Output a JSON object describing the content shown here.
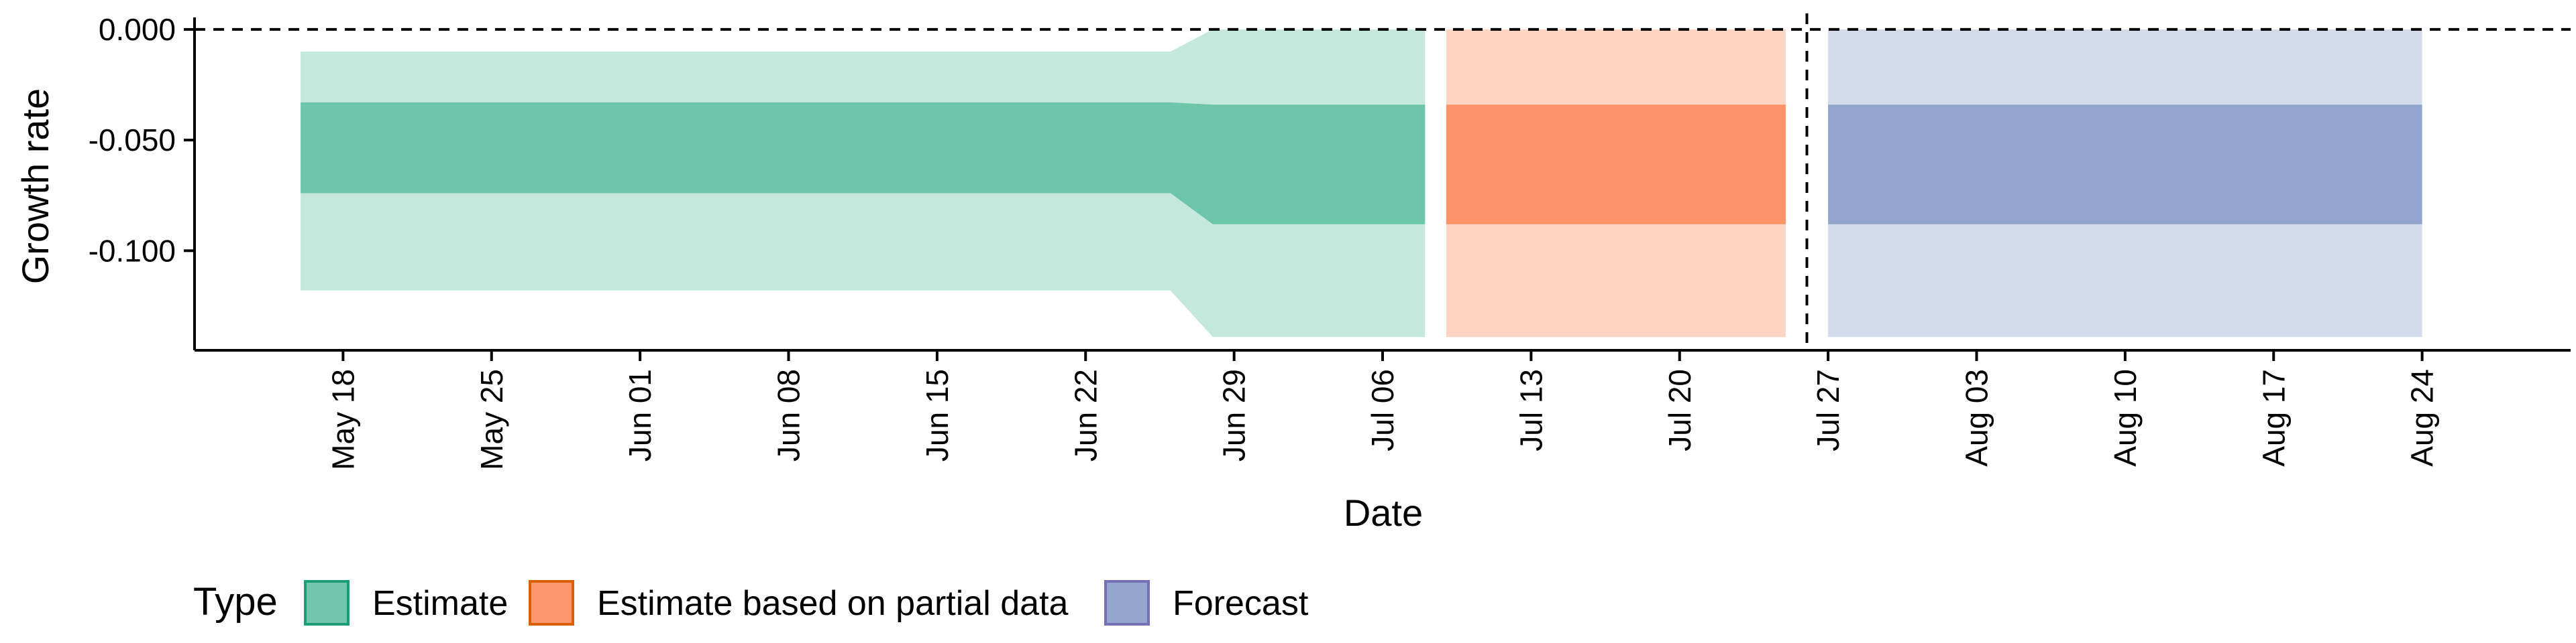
{
  "chart_data": {
    "type": "area",
    "xlabel": "Date",
    "ylabel": "Growth rate",
    "x_ticks": [
      "May 18",
      "May 25",
      "Jun 01",
      "Jun 08",
      "Jun 15",
      "Jun 22",
      "Jun 29",
      "Jul 06",
      "Jul 13",
      "Jul 20",
      "Jul 27",
      "Aug 03",
      "Aug 10",
      "Aug 17",
      "Aug 24"
    ],
    "x_range": [
      "2020-05-11",
      "2020-08-31"
    ],
    "y_ticks": [
      "0.000",
      "-0.050",
      "-0.100"
    ],
    "y_tick_values": [
      0,
      -0.05,
      -0.1
    ],
    "ylim": [
      -0.145,
      0.003
    ],
    "reference_lines": {
      "horizontal_y": 0,
      "vertical_x": "2020-07-26",
      "style": "dashed"
    },
    "legend": {
      "title": "Type",
      "position": "bottom-left",
      "items": [
        {
          "label": "Estimate",
          "fill": "#66c2a5",
          "border": "#1b9e77"
        },
        {
          "label": "Estimate based on partial data",
          "fill": "#fc8d62",
          "border": "#d95f02"
        },
        {
          "label": "Forecast",
          "fill": "#8da0cb",
          "border": "#7570b3"
        }
      ]
    },
    "series": [
      {
        "type_label": "Estimate",
        "fill": "#66c2a5",
        "points": [
          {
            "date": "2020-05-16",
            "lower_90": -0.118,
            "lower_50": -0.074,
            "upper_50": -0.033,
            "upper_90": -0.01
          },
          {
            "date": "2020-06-26",
            "lower_90": -0.118,
            "lower_50": -0.074,
            "upper_50": -0.033,
            "upper_90": -0.01
          },
          {
            "date": "2020-06-28",
            "lower_90": -0.139,
            "lower_50": -0.088,
            "upper_50": -0.034,
            "upper_90": 0.0
          },
          {
            "date": "2020-07-08",
            "lower_90": -0.139,
            "lower_50": -0.088,
            "upper_50": -0.034,
            "upper_90": 0.0
          }
        ]
      },
      {
        "type_label": "Estimate based on partial data",
        "fill": "#fc8d62",
        "points": [
          {
            "date": "2020-07-09",
            "lower_90": -0.139,
            "lower_50": -0.088,
            "upper_50": -0.034,
            "upper_90": 0.0
          },
          {
            "date": "2020-07-25",
            "lower_90": -0.139,
            "lower_50": -0.088,
            "upper_50": -0.034,
            "upper_90": 0.0
          }
        ]
      },
      {
        "type_label": "Forecast",
        "fill": "#8da0cb",
        "points": [
          {
            "date": "2020-07-27",
            "lower_90": -0.139,
            "lower_50": -0.088,
            "upper_50": -0.034,
            "upper_90": 0.0
          },
          {
            "date": "2020-08-24",
            "lower_90": -0.139,
            "lower_50": -0.088,
            "upper_50": -0.034,
            "upper_90": 0.0
          }
        ]
      }
    ]
  }
}
